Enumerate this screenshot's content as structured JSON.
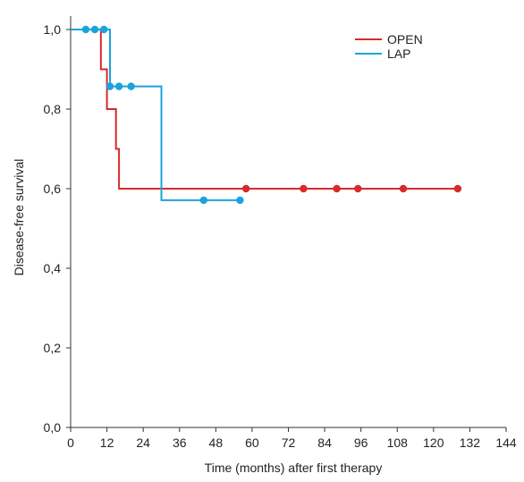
{
  "chart_data": {
    "type": "line",
    "subtype": "kaplan-meier step curve with censor markers",
    "title": "",
    "xlabel": "Time (months) after first therapy",
    "ylabel": "Disease-free survival",
    "xlim": [
      0,
      144
    ],
    "ylim": [
      0,
      1.0
    ],
    "x_ticks": [
      "0",
      "12",
      "24",
      "36",
      "48",
      "60",
      "72",
      "84",
      "96",
      "108",
      "120",
      "132",
      "144"
    ],
    "y_ticks": [
      "0,0",
      "0,2",
      "0,4",
      "0,6",
      "0,8",
      "1,0"
    ],
    "grid": false,
    "legend_position": "top-right",
    "series": [
      {
        "name": "OPEN",
        "color": "#d92a2a",
        "steps": [
          [
            0,
            1.0
          ],
          [
            10,
            1.0
          ],
          [
            10,
            0.9
          ],
          [
            12,
            0.9
          ],
          [
            12,
            0.8
          ],
          [
            15,
            0.8
          ],
          [
            15,
            0.7
          ],
          [
            16,
            0.7
          ],
          [
            16,
            0.6
          ],
          [
            128,
            0.6
          ]
        ],
        "censored": [
          [
            58,
            0.6
          ],
          [
            77,
            0.6
          ],
          [
            88,
            0.6
          ],
          [
            95,
            0.6
          ],
          [
            110,
            0.6
          ],
          [
            128,
            0.6
          ]
        ]
      },
      {
        "name": "LAP",
        "color": "#1aa3dd",
        "steps": [
          [
            0,
            1.0
          ],
          [
            13,
            1.0
          ],
          [
            13,
            0.857
          ],
          [
            30,
            0.857
          ],
          [
            30,
            0.571
          ],
          [
            57,
            0.571
          ]
        ],
        "censored": [
          [
            5,
            1.0
          ],
          [
            8,
            1.0
          ],
          [
            11,
            1.0
          ],
          [
            13,
            0.857
          ],
          [
            16,
            0.857
          ],
          [
            20,
            0.857
          ],
          [
            44,
            0.571
          ],
          [
            56,
            0.571
          ]
        ]
      }
    ]
  }
}
